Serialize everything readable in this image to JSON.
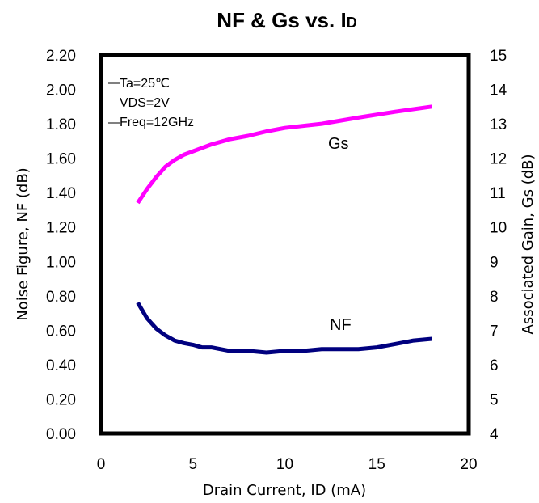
{
  "chart_data": {
    "type": "line",
    "title": {
      "main": "NF & Gs vs. I",
      "subscript": "D"
    },
    "xlabel": "Drain Current, ID (mA)",
    "ylabel_left": "Noise Figure, NF (dB)",
    "ylabel_right": "Associated Gain, Gs (dB)",
    "xlim": [
      0,
      20
    ],
    "ylim_left": [
      0,
      2.2
    ],
    "ylim_right": [
      4,
      15
    ],
    "x_ticks": [
      "0",
      "5",
      "10",
      "15",
      "20"
    ],
    "y_ticks_left": [
      "0.00",
      "0.20",
      "0.40",
      "0.60",
      "0.80",
      "1.00",
      "1.20",
      "1.40",
      "1.60",
      "1.80",
      "2.00",
      "2.20"
    ],
    "y_ticks_right": [
      "4",
      "5",
      "6",
      "7",
      "8",
      "9",
      "10",
      "11",
      "12",
      "13",
      "14",
      "15"
    ],
    "grid": false,
    "conditions": [
      "Ta=25℃",
      "VDS=2V",
      "Freq=12GHz"
    ],
    "series": [
      {
        "name": "Gs",
        "axis": "right",
        "color": "#ff00ff",
        "x": [
          2,
          2.5,
          3,
          3.5,
          4,
          4.5,
          5,
          6,
          7,
          8,
          9,
          10,
          12,
          14,
          16,
          18
        ],
        "y": [
          10.7,
          11.1,
          11.45,
          11.75,
          11.95,
          12.1,
          12.2,
          12.4,
          12.55,
          12.65,
          12.78,
          12.88,
          13.0,
          13.18,
          13.35,
          13.5
        ]
      },
      {
        "name": "NF",
        "axis": "left",
        "color": "#00007f",
        "x": [
          2,
          2.5,
          3,
          3.5,
          4,
          4.5,
          5,
          5.5,
          6,
          7,
          8,
          9,
          10,
          11,
          12,
          13,
          14,
          15,
          16,
          17,
          18
        ],
        "y": [
          0.76,
          0.67,
          0.61,
          0.57,
          0.54,
          0.525,
          0.515,
          0.5,
          0.5,
          0.48,
          0.48,
          0.47,
          0.48,
          0.48,
          0.49,
          0.49,
          0.49,
          0.5,
          0.52,
          0.54,
          0.55
        ]
      }
    ]
  }
}
